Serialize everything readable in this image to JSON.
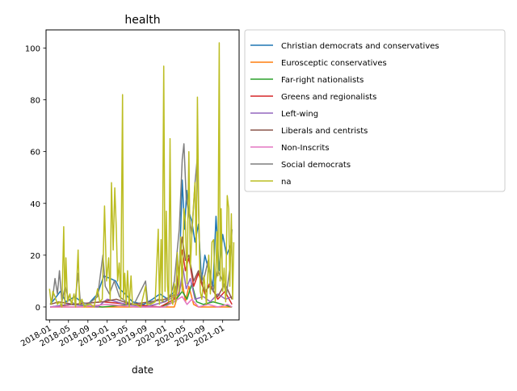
{
  "chart_data": {
    "type": "line",
    "title": "health",
    "xlabel": "date",
    "ylabel": "",
    "x_type": "date",
    "xlim": [
      "2017-12-10",
      "2021-04-15"
    ],
    "ylim": [
      -5,
      107
    ],
    "x_ticks": [
      "2018-01",
      "2018-05",
      "2018-09",
      "2019-01",
      "2019-05",
      "2019-09",
      "2020-01",
      "2020-05",
      "2020-09",
      "2021-01"
    ],
    "y_ticks": [
      0,
      20,
      40,
      60,
      80,
      100
    ],
    "y_tick_labels": [
      "0",
      "20",
      "40",
      "60",
      "80",
      "100"
    ],
    "legend_position": "outside-right-top",
    "grid": false,
    "series": [
      {
        "name": "Christian democrats and conservatives",
        "color": "#1f77b4",
        "points": [
          [
            "2018-01-05",
            1
          ],
          [
            "2018-02-01",
            3
          ],
          [
            "2018-03-10",
            6
          ],
          [
            "2018-04-15",
            2
          ],
          [
            "2018-06-10",
            4
          ],
          [
            "2018-07-20",
            2
          ],
          [
            "2018-09-01",
            1
          ],
          [
            "2018-11-01",
            5
          ],
          [
            "2018-12-10",
            12
          ],
          [
            "2019-01-20",
            11
          ],
          [
            "2019-02-25",
            10
          ],
          [
            "2019-03-20",
            7
          ],
          [
            "2019-04-25",
            5
          ],
          [
            "2019-06-10",
            2
          ],
          [
            "2019-08-20",
            1
          ],
          [
            "2019-10-15",
            3
          ],
          [
            "2019-12-01",
            5
          ],
          [
            "2020-01-20",
            3
          ],
          [
            "2020-03-01",
            6
          ],
          [
            "2020-04-01",
            12
          ],
          [
            "2020-04-20",
            49
          ],
          [
            "2020-05-05",
            30
          ],
          [
            "2020-05-18",
            45
          ],
          [
            "2020-06-01",
            37
          ],
          [
            "2020-06-20",
            33
          ],
          [
            "2020-07-10",
            25
          ],
          [
            "2020-08-01",
            32
          ],
          [
            "2020-08-20",
            10
          ],
          [
            "2020-09-10",
            20
          ],
          [
            "2020-10-10",
            13
          ],
          [
            "2020-11-01",
            8
          ],
          [
            "2020-11-20",
            35
          ],
          [
            "2020-12-10",
            14
          ],
          [
            "2021-01-01",
            28
          ],
          [
            "2021-01-25",
            20
          ],
          [
            "2021-02-15",
            23
          ],
          [
            "2021-03-01",
            25
          ]
        ]
      },
      {
        "name": "Eurosceptic conservatives",
        "color": "#ff7f0e",
        "points": [
          [
            "2018-01-05",
            0
          ],
          [
            "2018-04-01",
            0
          ],
          [
            "2018-08-01",
            0
          ],
          [
            "2018-12-01",
            0
          ],
          [
            "2019-04-01",
            0
          ],
          [
            "2019-08-01",
            0
          ],
          [
            "2019-12-01",
            0
          ],
          [
            "2020-03-01",
            0
          ],
          [
            "2020-04-20",
            10
          ],
          [
            "2020-05-10",
            2
          ],
          [
            "2020-06-01",
            8
          ],
          [
            "2020-07-01",
            1
          ],
          [
            "2020-08-01",
            0
          ],
          [
            "2020-10-01",
            0
          ],
          [
            "2020-12-01",
            0
          ],
          [
            "2021-02-01",
            0
          ],
          [
            "2021-03-01",
            0
          ]
        ]
      },
      {
        "name": "Far-right nationalists",
        "color": "#2ca02c",
        "points": [
          [
            "2018-01-05",
            0
          ],
          [
            "2018-06-01",
            1
          ],
          [
            "2018-12-01",
            0
          ],
          [
            "2019-06-01",
            1
          ],
          [
            "2019-12-01",
            0
          ],
          [
            "2020-03-01",
            2
          ],
          [
            "2020-04-20",
            6
          ],
          [
            "2020-05-20",
            3
          ],
          [
            "2020-06-20",
            9
          ],
          [
            "2020-07-20",
            2
          ],
          [
            "2020-09-01",
            1
          ],
          [
            "2020-11-01",
            2
          ],
          [
            "2021-01-01",
            1
          ],
          [
            "2021-03-01",
            0
          ]
        ]
      },
      {
        "name": "Greens and regionalists",
        "color": "#d62728",
        "points": [
          [
            "2018-01-05",
            0
          ],
          [
            "2018-06-01",
            1
          ],
          [
            "2018-12-01",
            2
          ],
          [
            "2019-06-01",
            1
          ],
          [
            "2019-12-01",
            0
          ],
          [
            "2020-03-01",
            3
          ],
          [
            "2020-04-20",
            22
          ],
          [
            "2020-05-10",
            14
          ],
          [
            "2020-06-01",
            19
          ],
          [
            "2020-07-01",
            8
          ],
          [
            "2020-08-01",
            13
          ],
          [
            "2020-09-10",
            5
          ],
          [
            "2020-10-10",
            9
          ],
          [
            "2020-12-01",
            3
          ],
          [
            "2021-01-15",
            6
          ],
          [
            "2021-03-01",
            1
          ]
        ]
      },
      {
        "name": "Left-wing",
        "color": "#9467bd",
        "points": [
          [
            "2018-01-05",
            0
          ],
          [
            "2018-05-01",
            1
          ],
          [
            "2018-11-01",
            0
          ],
          [
            "2019-01-01",
            3
          ],
          [
            "2019-03-01",
            2
          ],
          [
            "2019-05-01",
            1
          ],
          [
            "2019-09-01",
            0
          ],
          [
            "2020-01-01",
            2
          ],
          [
            "2020-04-01",
            5
          ],
          [
            "2020-04-25",
            15
          ],
          [
            "2020-05-15",
            7
          ],
          [
            "2020-06-10",
            11
          ],
          [
            "2020-07-10",
            3
          ],
          [
            "2020-09-01",
            4
          ],
          [
            "2020-10-15",
            2
          ],
          [
            "2020-12-01",
            5
          ],
          [
            "2021-01-20",
            3
          ],
          [
            "2021-03-01",
            4
          ]
        ]
      },
      {
        "name": "Liberals and centrists",
        "color": "#8c564b",
        "points": [
          [
            "2018-01-05",
            1
          ],
          [
            "2018-03-01",
            2
          ],
          [
            "2018-06-01",
            1
          ],
          [
            "2018-12-01",
            2
          ],
          [
            "2019-03-01",
            3
          ],
          [
            "2019-06-01",
            1
          ],
          [
            "2019-10-01",
            2
          ],
          [
            "2020-01-01",
            3
          ],
          [
            "2020-03-15",
            5
          ],
          [
            "2020-04-20",
            27
          ],
          [
            "2020-05-10",
            18
          ],
          [
            "2020-06-01",
            20
          ],
          [
            "2020-07-01",
            10
          ],
          [
            "2020-08-01",
            14
          ],
          [
            "2020-09-10",
            6
          ],
          [
            "2020-10-10",
            8
          ],
          [
            "2020-12-01",
            4
          ],
          [
            "2021-01-15",
            9
          ],
          [
            "2021-03-01",
            3
          ]
        ]
      },
      {
        "name": "Non-Inscrits",
        "color": "#e377c2",
        "points": [
          [
            "2018-01-05",
            0
          ],
          [
            "2018-07-01",
            0
          ],
          [
            "2019-01-01",
            1
          ],
          [
            "2019-07-01",
            0
          ],
          [
            "2020-01-01",
            0
          ],
          [
            "2020-04-20",
            4
          ],
          [
            "2020-05-20",
            1
          ],
          [
            "2020-06-20",
            3
          ],
          [
            "2020-08-01",
            0
          ],
          [
            "2020-10-01",
            1
          ],
          [
            "2020-12-01",
            0
          ],
          [
            "2021-02-01",
            1
          ],
          [
            "2021-03-01",
            0
          ]
        ]
      },
      {
        "name": "Social democrats",
        "color": "#7f7f7f",
        "points": [
          [
            "2018-01-05",
            1
          ],
          [
            "2018-01-20",
            3
          ],
          [
            "2018-02-05",
            11
          ],
          [
            "2018-02-20",
            5
          ],
          [
            "2018-03-05",
            14
          ],
          [
            "2018-03-20",
            2
          ],
          [
            "2018-04-10",
            8
          ],
          [
            "2018-05-01",
            3
          ],
          [
            "2018-06-10",
            1
          ],
          [
            "2018-07-01",
            13
          ],
          [
            "2018-07-15",
            2
          ],
          [
            "2018-09-01",
            1
          ],
          [
            "2018-11-01",
            4
          ],
          [
            "2018-12-05",
            20
          ],
          [
            "2018-12-20",
            8
          ],
          [
            "2019-01-15",
            5
          ],
          [
            "2019-02-15",
            10
          ],
          [
            "2019-03-20",
            4
          ],
          [
            "2019-05-01",
            2
          ],
          [
            "2019-06-20",
            1
          ],
          [
            "2019-09-01",
            10
          ],
          [
            "2019-09-15",
            1
          ],
          [
            "2019-11-20",
            3
          ],
          [
            "2020-01-01",
            2
          ],
          [
            "2020-02-10",
            5
          ],
          [
            "2020-03-01",
            10
          ],
          [
            "2020-04-01",
            30
          ],
          [
            "2020-04-20",
            57
          ],
          [
            "2020-05-01",
            63
          ],
          [
            "2020-05-15",
            42
          ],
          [
            "2020-06-01",
            36
          ],
          [
            "2020-06-20",
            28
          ],
          [
            "2020-07-10",
            48
          ],
          [
            "2020-07-25",
            58
          ],
          [
            "2020-08-10",
            15
          ],
          [
            "2020-09-01",
            10
          ],
          [
            "2020-10-01",
            18
          ],
          [
            "2020-11-01",
            6
          ],
          [
            "2020-12-01",
            14
          ],
          [
            "2021-01-01",
            10
          ],
          [
            "2021-01-25",
            5
          ],
          [
            "2021-02-15",
            15
          ],
          [
            "2021-03-01",
            30
          ]
        ]
      },
      {
        "name": "na",
        "color": "#bcbd22",
        "points": [
          [
            "2018-01-01",
            7
          ],
          [
            "2018-01-12",
            1
          ],
          [
            "2018-01-22",
            6
          ],
          [
            "2018-02-05",
            4
          ],
          [
            "2018-02-20",
            1
          ],
          [
            "2018-03-05",
            2
          ],
          [
            "2018-03-20",
            0
          ],
          [
            "2018-04-01",
            31
          ],
          [
            "2018-04-08",
            1
          ],
          [
            "2018-04-15",
            19
          ],
          [
            "2018-04-25",
            2
          ],
          [
            "2018-05-10",
            5
          ],
          [
            "2018-05-20",
            1
          ],
          [
            "2018-06-05",
            5
          ],
          [
            "2018-06-15",
            0
          ],
          [
            "2018-07-01",
            22
          ],
          [
            "2018-07-10",
            1
          ],
          [
            "2018-07-25",
            3
          ],
          [
            "2018-08-10",
            0
          ],
          [
            "2018-09-01",
            1
          ],
          [
            "2018-09-20",
            1
          ],
          [
            "2018-10-10",
            0
          ],
          [
            "2018-11-01",
            7
          ],
          [
            "2018-11-15",
            2
          ],
          [
            "2018-12-01",
            3
          ],
          [
            "2018-12-15",
            39
          ],
          [
            "2018-12-28",
            10
          ],
          [
            "2019-01-10",
            19
          ],
          [
            "2019-01-20",
            3
          ],
          [
            "2019-01-28",
            48
          ],
          [
            "2019-02-08",
            22
          ],
          [
            "2019-02-18",
            46
          ],
          [
            "2019-02-28",
            30
          ],
          [
            "2019-03-08",
            10
          ],
          [
            "2019-03-18",
            17
          ],
          [
            "2019-03-28",
            3
          ],
          [
            "2019-04-08",
            82
          ],
          [
            "2019-04-14",
            3
          ],
          [
            "2019-04-22",
            13
          ],
          [
            "2019-05-01",
            1
          ],
          [
            "2019-05-10",
            14
          ],
          [
            "2019-05-20",
            0
          ],
          [
            "2019-06-01",
            12
          ],
          [
            "2019-06-10",
            1
          ],
          [
            "2019-07-01",
            1
          ],
          [
            "2019-08-01",
            0
          ],
          [
            "2019-09-01",
            8
          ],
          [
            "2019-09-10",
            1
          ],
          [
            "2019-10-01",
            1
          ],
          [
            "2019-11-01",
            2
          ],
          [
            "2019-11-20",
            30
          ],
          [
            "2019-11-28",
            1
          ],
          [
            "2019-12-08",
            26
          ],
          [
            "2019-12-15",
            2
          ],
          [
            "2019-12-25",
            93
          ],
          [
            "2020-01-02",
            6
          ],
          [
            "2020-01-10",
            37
          ],
          [
            "2020-01-18",
            8
          ],
          [
            "2020-01-25",
            2
          ],
          [
            "2020-02-03",
            65
          ],
          [
            "2020-02-12",
            3
          ],
          [
            "2020-02-20",
            1
          ],
          [
            "2020-03-01",
            9
          ],
          [
            "2020-03-10",
            2
          ],
          [
            "2020-03-20",
            21
          ],
          [
            "2020-03-30",
            6
          ],
          [
            "2020-04-10",
            27
          ],
          [
            "2020-04-20",
            6
          ],
          [
            "2020-05-01",
            38
          ],
          [
            "2020-05-10",
            33
          ],
          [
            "2020-05-20",
            9
          ],
          [
            "2020-06-01",
            60
          ],
          [
            "2020-06-10",
            15
          ],
          [
            "2020-06-20",
            28
          ],
          [
            "2020-07-01",
            40
          ],
          [
            "2020-07-10",
            48
          ],
          [
            "2020-07-18",
            20
          ],
          [
            "2020-07-25",
            81
          ],
          [
            "2020-08-03",
            35
          ],
          [
            "2020-08-12",
            6
          ],
          [
            "2020-08-22",
            3
          ],
          [
            "2020-09-05",
            12
          ],
          [
            "2020-09-20",
            1
          ],
          [
            "2020-10-05",
            20
          ],
          [
            "2020-10-15",
            5
          ],
          [
            "2020-10-25",
            25
          ],
          [
            "2020-11-05",
            26
          ],
          [
            "2020-11-15",
            2
          ],
          [
            "2020-11-25",
            29
          ],
          [
            "2020-12-02",
            12
          ],
          [
            "2020-12-10",
            102
          ],
          [
            "2020-12-16",
            10
          ],
          [
            "2020-12-22",
            38
          ],
          [
            "2021-01-01",
            6
          ],
          [
            "2021-01-10",
            15
          ],
          [
            "2021-01-20",
            2
          ],
          [
            "2021-01-30",
            43
          ],
          [
            "2021-02-08",
            38
          ],
          [
            "2021-02-15",
            8
          ],
          [
            "2021-02-25",
            36
          ],
          [
            "2021-03-05",
            3
          ],
          [
            "2021-03-12",
            25
          ]
        ]
      }
    ]
  }
}
